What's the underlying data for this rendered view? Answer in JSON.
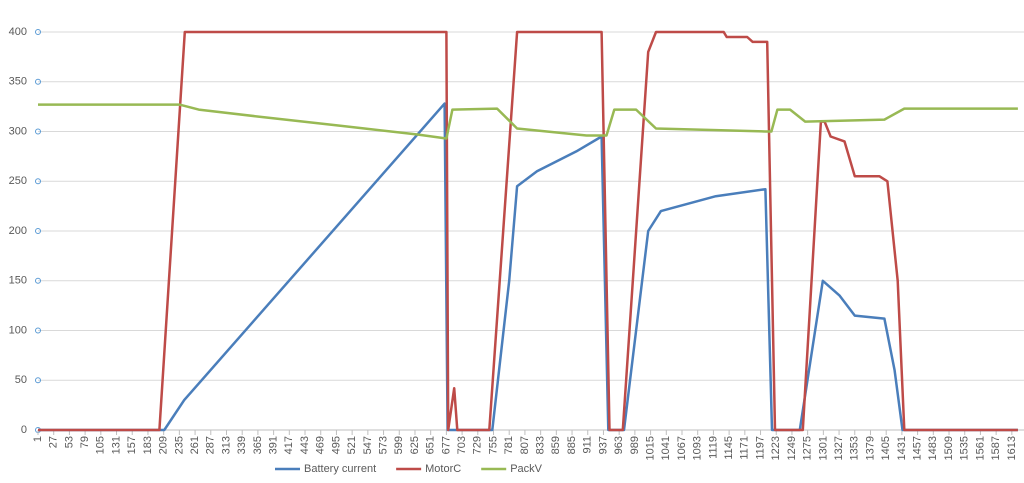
{
  "chart_data": {
    "type": "line",
    "legend": "bottom",
    "grid": true,
    "xlim": [
      1,
      1623
    ],
    "ylim": [
      0,
      400
    ],
    "yticks": [
      0,
      50,
      100,
      150,
      200,
      250,
      300,
      350,
      400
    ],
    "xticks": [
      1,
      27,
      53,
      79,
      105,
      131,
      157,
      183,
      209,
      235,
      261,
      287,
      313,
      339,
      365,
      391,
      417,
      443,
      469,
      495,
      521,
      547,
      573,
      599,
      625,
      651,
      677,
      703,
      729,
      755,
      781,
      807,
      833,
      859,
      885,
      911,
      937,
      963,
      989,
      1015,
      1041,
      1067,
      1093,
      1119,
      1145,
      1171,
      1197,
      1223,
      1249,
      1275,
      1301,
      1327,
      1353,
      1379,
      1405,
      1431,
      1457,
      1483,
      1509,
      1535,
      1561,
      1587,
      1613
    ],
    "series": [
      {
        "name": "Battery current",
        "color": "#4a7ebb",
        "x": [
          1,
          210,
          243,
          674,
          679,
          753,
          781,
          794,
          827,
          892,
          934,
          945,
          971,
          1011,
          1032,
          1123,
          1205,
          1216,
          1262,
          1300,
          1328,
          1353,
          1402,
          1419,
          1432,
          1623
        ],
        "values": [
          0,
          0,
          30,
          328,
          0,
          0,
          150,
          245,
          260,
          280,
          295,
          0,
          0,
          200,
          220,
          235,
          242,
          0,
          0,
          150,
          135,
          115,
          112,
          60,
          0,
          0
        ]
      },
      {
        "name": "MotorC",
        "color": "#be4b48",
        "x": [
          1,
          202,
          244,
          677,
          680,
          690,
          695,
          748,
          794,
          934,
          947,
          969,
          1011,
          1024,
          1136,
          1141,
          1175,
          1184,
          1208,
          1221,
          1267,
          1297,
          1303,
          1313,
          1336,
          1353,
          1394,
          1407,
          1424,
          1435,
          1623
        ],
        "values": [
          0,
          0,
          400,
          400,
          0,
          42,
          0,
          0,
          400,
          400,
          0,
          0,
          380,
          400,
          400,
          395,
          395,
          390,
          390,
          0,
          0,
          310,
          310,
          295,
          290,
          255,
          255,
          250,
          150,
          0,
          0
        ]
      },
      {
        "name": "PackV",
        "color": "#98b954",
        "x": [
          1,
          235,
          267,
          366,
          498,
          629,
          677,
          687,
          761,
          794,
          909,
          942,
          955,
          991,
          1024,
          1205,
          1215,
          1225,
          1246,
          1271,
          1402,
          1435,
          1623
        ],
        "values": [
          327,
          327,
          322,
          315,
          306,
          297,
          293,
          322,
          323,
          303,
          296,
          296,
          322,
          322,
          303,
          300,
          300,
          322,
          322,
          310,
          312,
          323,
          323
        ]
      }
    ]
  }
}
